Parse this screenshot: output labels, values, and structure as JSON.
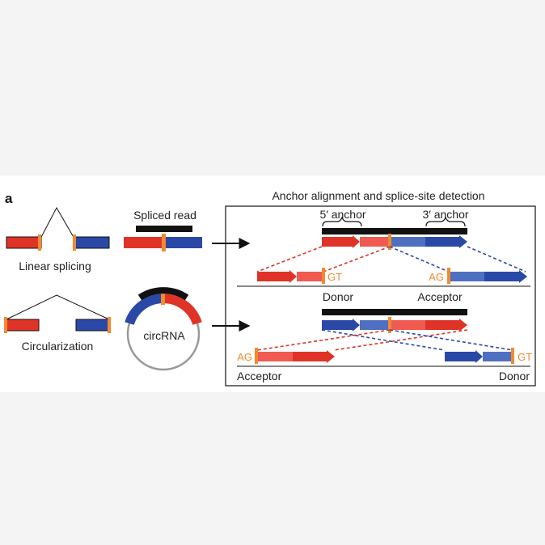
{
  "panel_label": "a",
  "left": {
    "linear_label": "Linear splicing",
    "circ_label": "Circularization",
    "spliced_read_label": "Spliced read",
    "circrna_label": "circRNA"
  },
  "right": {
    "title": "Anchor alignment and splice-site detection",
    "anchor5_label": "5′ anchor",
    "anchor3_label": "3′ anchor",
    "top": {
      "gt": "GT",
      "ag": "AG",
      "donor": "Donor",
      "acceptor": "Acceptor"
    },
    "bottom": {
      "ag": "AG",
      "gt": "GT",
      "acceptor": "Acceptor",
      "donor": "Donor"
    }
  },
  "colors": {
    "red": "#e03327",
    "red_light": "#f05a50",
    "blue": "#2a48a6",
    "blue_light": "#4f6fc0",
    "orange": "#f28a30",
    "black": "#111111",
    "grey_ring": "#999999"
  }
}
